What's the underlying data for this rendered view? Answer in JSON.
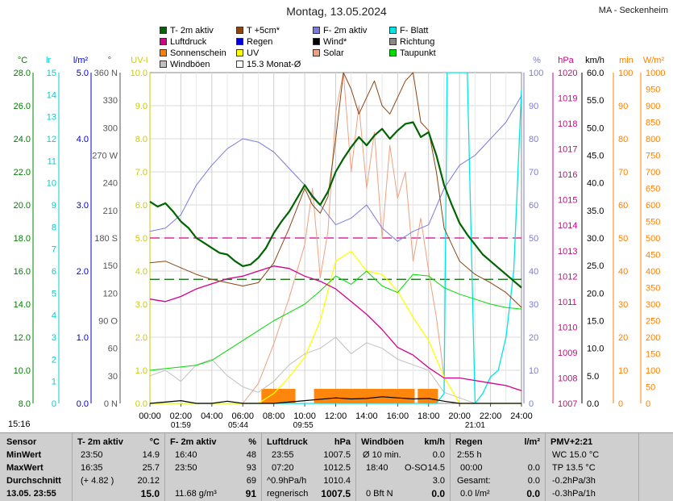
{
  "title": "Montag, 13.05.2024",
  "station": "MA - Seckenheim",
  "legend": [
    {
      "label": "T- 2m aktiv",
      "color": "#006400"
    },
    {
      "label": "T +5cm*",
      "color": "#8b4513"
    },
    {
      "label": "F- 2m aktiv",
      "color": "#7b7bdd"
    },
    {
      "label": "F- Blatt",
      "color": "#00e5e5"
    },
    {
      "label": "Luftdruck",
      "color": "#d4008a"
    },
    {
      "label": "Regen",
      "color": "#0000dd"
    },
    {
      "label": "Wind*",
      "color": "#000000"
    },
    {
      "label": "Richtung",
      "color": "#888888"
    },
    {
      "label": "Sonnenschein",
      "color": "#ff8000"
    },
    {
      "label": "UV",
      "color": "#ffff00"
    },
    {
      "label": "Solar",
      "color": "#f0a080"
    },
    {
      "label": "Taupunkt",
      "color": "#00dd00"
    },
    {
      "label": "Windböen",
      "color": "#c0c0c0"
    },
    {
      "label": "15.3 Monat-Ø",
      "color": "#ffffff"
    }
  ],
  "chart_data": {
    "type": "line",
    "x_unit": "h",
    "x_ticks": [
      "00:00",
      "02:00",
      "04:00",
      "06:00",
      "08:00",
      "10:00",
      "12:00",
      "14:00",
      "16:00",
      "18:00",
      "20:00",
      "22:00",
      "24:00"
    ],
    "xlim": [
      0,
      24
    ],
    "axes": [
      {
        "unit": "°C",
        "color": "#008000",
        "range": [
          8,
          28
        ],
        "ticks": [
          "8.0",
          "10.0",
          "12.0",
          "14.0",
          "16.0",
          "18.0",
          "20.0",
          "22.0",
          "24.0",
          "26.0",
          "28.0"
        ]
      },
      {
        "unit": "lr",
        "color": "#00cccc",
        "range": [
          0,
          15
        ],
        "ticks": [
          "0",
          "1",
          "2",
          "3",
          "4",
          "5",
          "6",
          "7",
          "8",
          "9",
          "10",
          "11",
          "12",
          "13",
          "14",
          "15"
        ]
      },
      {
        "unit": "l/m²",
        "color": "#0000cc",
        "range": [
          0,
          5
        ],
        "ticks": [
          "0.0",
          "1.0",
          "2.0",
          "3.0",
          "4.0",
          "5.0"
        ]
      },
      {
        "unit": "°",
        "color": "#555555",
        "range": [
          0,
          360
        ],
        "ticks": [
          "0 N",
          "30",
          "60",
          "90 O",
          "120",
          "150",
          "180 S",
          "210",
          "240",
          "270 W",
          "300",
          "330",
          "360 N"
        ]
      },
      {
        "unit": "UV-I",
        "color": "#cccc00",
        "range": [
          0,
          10
        ],
        "ticks": [
          "0.0",
          "1.0",
          "2.0",
          "3.0",
          "4.0",
          "5.0",
          "6.0",
          "7.0",
          "8.0",
          "9.0",
          "10.0"
        ]
      },
      {
        "unit": "%",
        "color": "#7b7bdd",
        "range": [
          0,
          100
        ],
        "ticks": [
          "0",
          "10",
          "20",
          "30",
          "40",
          "50",
          "60",
          "70",
          "80",
          "90",
          "100"
        ]
      },
      {
        "unit": "hPa",
        "color": "#d4008a",
        "range": [
          1007,
          1020
        ],
        "ticks": [
          "1007",
          "1008",
          "1009",
          "1010",
          "1011",
          "1012",
          "1013",
          "1014",
          "1015",
          "1016",
          "1017",
          "1018",
          "1019",
          "1020"
        ]
      },
      {
        "unit": "km/h",
        "color": "#000000",
        "range": [
          0,
          60
        ],
        "ticks": [
          "0.0",
          "5.0",
          "10.0",
          "15.0",
          "20.0",
          "25.0",
          "30.0",
          "35.0",
          "40.0",
          "45.0",
          "50.0",
          "55.0",
          "60.0"
        ]
      },
      {
        "unit": "min",
        "color": "#ff8000",
        "range": [
          0,
          100
        ],
        "ticks": [
          "0",
          "10",
          "20",
          "30",
          "40",
          "50",
          "60",
          "70",
          "80",
          "90",
          "100"
        ]
      },
      {
        "unit": "W/m²",
        "color": "#ff8000",
        "range": [
          0,
          1000
        ],
        "ticks": [
          "0",
          "50",
          "100",
          "150",
          "200",
          "250",
          "300",
          "350",
          "400",
          "450",
          "500",
          "550",
          "600",
          "650",
          "700",
          "750",
          "800",
          "850",
          "900",
          "950",
          "1000"
        ]
      }
    ],
    "series": [
      {
        "name": "T- 2m aktiv",
        "axis": "°C",
        "color": "#006400",
        "x": [
          0,
          0.5,
          1,
          1.5,
          2,
          2.5,
          3,
          3.5,
          4,
          4.5,
          5,
          5.5,
          6,
          6.5,
          7,
          7.5,
          8,
          8.5,
          9,
          9.5,
          10,
          10.5,
          11,
          11.5,
          12,
          12.5,
          13,
          13.5,
          14,
          14.5,
          15,
          15.5,
          16,
          16.5,
          17,
          17.5,
          18,
          18.5,
          19,
          19.5,
          20,
          20.5,
          21,
          21.5,
          22,
          22.5,
          23,
          23.5,
          24
        ],
        "values": [
          20.2,
          19.9,
          20.1,
          19.6,
          19.0,
          18.6,
          18.0,
          17.7,
          17.4,
          17.1,
          17.0,
          16.6,
          16.3,
          16.4,
          16.8,
          17.4,
          18.3,
          19.0,
          19.6,
          20.4,
          21.2,
          20.5,
          20.0,
          20.8,
          22.0,
          22.8,
          23.5,
          24.1,
          23.6,
          24.2,
          24.6,
          24.0,
          24.5,
          24.9,
          25.0,
          24.1,
          24.4,
          23.0,
          21.2,
          20.0,
          18.9,
          18.2,
          17.6,
          17.0,
          16.6,
          16.2,
          15.8,
          15.4,
          15.0
        ]
      },
      {
        "name": "T +5cm*",
        "axis": "°C",
        "color": "#8b4513",
        "x": [
          0,
          1,
          2,
          3,
          4,
          5,
          6,
          7,
          8,
          9,
          9.5,
          10,
          10.5,
          11,
          11.5,
          12,
          12.5,
          13,
          13.5,
          14,
          14.5,
          15,
          15.5,
          16,
          16.5,
          17,
          17.5,
          18,
          18.5,
          19,
          20,
          21,
          22,
          23,
          24
        ],
        "values": [
          16.5,
          16.6,
          16.2,
          15.8,
          15.5,
          15.3,
          15.1,
          15.3,
          16.5,
          18.6,
          19.8,
          21.0,
          20.0,
          19.5,
          20.5,
          24.0,
          28.0,
          27.0,
          25.5,
          26.5,
          27.5,
          26.0,
          25.5,
          26.5,
          27.5,
          28.0,
          25.0,
          24.5,
          22.0,
          18.6,
          16.6,
          15.8,
          15.3,
          14.7,
          13.8
        ]
      },
      {
        "name": "F- 2m aktiv",
        "axis": "%",
        "color": "#7b7bdd",
        "x": [
          0,
          1,
          2,
          3,
          4,
          5,
          6,
          7,
          8,
          9,
          10,
          11,
          12,
          13,
          14,
          15,
          16,
          17,
          18,
          19,
          20,
          21,
          22,
          23,
          24
        ],
        "values": [
          52,
          53,
          57,
          66,
          72,
          77,
          80,
          79,
          76,
          71,
          66,
          60,
          54,
          56,
          60,
          53,
          49,
          52,
          54,
          65,
          72,
          75,
          80,
          85,
          93
        ]
      },
      {
        "name": "F- Blatt",
        "axis": "%",
        "color": "#00e5e5",
        "x": [
          0,
          18.5,
          19,
          19.2,
          19.5,
          20.0,
          20.5,
          21,
          21.5,
          22,
          22.5,
          23,
          23.5,
          24
        ],
        "values": [
          0,
          0,
          3,
          100,
          100,
          100,
          100,
          0,
          3,
          8,
          10,
          20,
          40,
          95
        ]
      },
      {
        "name": "Luftdruck",
        "axis": "hPa",
        "color": "#d4008a",
        "x": [
          0,
          1,
          2,
          3,
          4,
          5,
          6,
          7,
          8,
          9,
          10,
          11,
          12,
          13,
          14,
          15,
          16,
          17,
          18,
          19,
          20,
          21,
          22,
          23,
          24
        ],
        "values": [
          1011.1,
          1011.0,
          1011.2,
          1011.5,
          1011.7,
          1011.9,
          1012.0,
          1012.2,
          1012.4,
          1012.3,
          1012.0,
          1011.8,
          1011.5,
          1011.0,
          1010.5,
          1009.9,
          1009.2,
          1008.9,
          1008.4,
          1008.0,
          1008.0,
          1007.9,
          1007.8,
          1007.7,
          1007.5
        ]
      },
      {
        "name": "Taupunkt",
        "axis": "°C",
        "color": "#00dd00",
        "x": [
          0,
          1,
          2,
          3,
          4,
          5,
          6,
          7,
          8,
          9,
          10,
          11,
          12,
          13,
          14,
          15,
          16,
          17,
          18,
          19,
          20,
          21,
          22,
          23,
          24
        ],
        "values": [
          10.0,
          10.1,
          10.2,
          10.3,
          10.6,
          11.2,
          11.8,
          12.4,
          13.0,
          13.5,
          14.0,
          14.8,
          15.7,
          15.2,
          16.0,
          15.1,
          14.7,
          15.8,
          15.7,
          15.0,
          14.6,
          14.3,
          14.0,
          13.8,
          13.7
        ]
      },
      {
        "name": "Windböen",
        "axis": "km/h",
        "color": "#c0c0c0",
        "x": [
          0,
          1,
          2,
          3,
          4,
          5,
          6,
          7,
          8,
          9,
          10,
          11,
          12,
          13,
          14,
          15,
          16,
          17,
          18,
          19,
          20,
          21,
          22,
          23,
          24
        ],
        "values": [
          5,
          6,
          4,
          7,
          8,
          5,
          3,
          2,
          4,
          7,
          9,
          10,
          12,
          9,
          11,
          10,
          8,
          7,
          6,
          2,
          1,
          0,
          0,
          0,
          0
        ]
      },
      {
        "name": "Solar",
        "axis": "W/m²",
        "color": "#f0a080",
        "x": [
          0,
          6,
          7,
          8,
          9,
          10,
          10.5,
          11,
          11.5,
          12,
          12.5,
          13,
          13.5,
          14,
          14.5,
          15,
          15.5,
          16,
          16.5,
          17,
          17.5,
          18,
          18.5,
          19,
          20,
          24
        ],
        "values": [
          0,
          0,
          60,
          180,
          320,
          480,
          650,
          380,
          520,
          880,
          1000,
          700,
          900,
          650,
          820,
          500,
          780,
          620,
          700,
          430,
          560,
          400,
          260,
          80,
          0,
          0
        ]
      },
      {
        "name": "UV",
        "axis": "UV-I",
        "color": "#ffff00",
        "x": [
          0,
          7,
          8,
          9,
          10,
          11,
          12,
          13,
          14,
          15,
          16,
          17,
          18,
          19,
          20,
          24
        ],
        "values": [
          0,
          0,
          0.3,
          0.8,
          1.4,
          2.5,
          4.3,
          4.6,
          4.0,
          3.9,
          3.4,
          2.6,
          1.9,
          0.8,
          0,
          0
        ]
      },
      {
        "name": "Wind*",
        "axis": "km/h",
        "color": "#000000",
        "x": [
          0,
          2,
          3,
          4,
          5,
          6,
          8,
          10,
          12,
          13,
          14,
          15,
          16,
          17,
          18,
          19,
          20,
          24
        ],
        "values": [
          0,
          0.5,
          0,
          0,
          0.4,
          0,
          0,
          0.5,
          1.0,
          0.8,
          0.9,
          1.2,
          1.0,
          0.8,
          0.9,
          0.4,
          0,
          0
        ]
      },
      {
        "name": "Sonnenschein",
        "axis": "min",
        "color": "#ff8000",
        "x": [
          7.2,
          9.4,
          10.4,
          10.6,
          11.8,
          17.1,
          17.3,
          18.3,
          18.6
        ],
        "values": [
          5,
          5,
          0,
          0,
          5,
          5,
          0,
          5,
          5
        ]
      }
    ],
    "reference_lines": [
      {
        "axis": "°C",
        "value": 18.0,
        "color": "#d4008a",
        "style": "dashed"
      },
      {
        "axis": "°C",
        "value": 15.5,
        "color": "#006400",
        "style": "dashed"
      }
    ],
    "time_markers": [
      "01:59",
      "05:44",
      "09:55",
      "21:01"
    ],
    "grid": true
  },
  "footer": {
    "time_label": "15:16",
    "sensor": {
      "header": "Sensor",
      "min": "MinWert",
      "max": "MaxWert",
      "avg": "Durchschnitt",
      "date": "13.05. 23:55"
    },
    "temp": {
      "header": "T- 2m aktiv",
      "unit": "°C",
      "min_time": "23:50",
      "min_val": "14.9",
      "max_time": "16:35",
      "max_val": "25.7",
      "avg_note": "(+ 4.82 )",
      "avg_val": "20.12",
      "current": "15.0"
    },
    "hum": {
      "header": "F- 2m aktiv",
      "unit": "%",
      "min_time": "16:40",
      "min_val": "48",
      "max_time": "23:50",
      "max_val": "93",
      "avg_val": "69",
      "abs": "11.68 g/m³",
      "current": "91"
    },
    "press": {
      "header": "Luftdruck",
      "unit": "hPa",
      "min_time": "23:55",
      "min_val": "1007.5",
      "max_time": "07:20",
      "max_val": "1012.5",
      "trend": "^0.9hPa/h",
      "trend_val": "1010.4",
      "status": "regnerisch",
      "current": "1007.5"
    },
    "gust": {
      "header": "Windböen",
      "unit": "km/h",
      "l1": "Ø 10 min.",
      "l1v": "0.0",
      "l2t": "18:40",
      "l2d": "O-SO",
      "l2v": "14.5",
      "l3v": "3.0",
      "l4": "0 Bft N",
      "current": "0.0"
    },
    "rain": {
      "header": "Regen",
      "unit": "l/m²",
      "l1": "2:55 h",
      "l2t": "00:00",
      "l2v": "0.0",
      "l3": "Gesamt:",
      "l3v": "0.0",
      "l4": "0.0 l/m²",
      "current": "0.0"
    },
    "pmv": {
      "header": "PMV+2:21",
      "l1": "WC 15.0 °C",
      "l2": "TP 13.5 °C",
      "l3": "-0.2hPa/3h",
      "l4": "-0.3hPa/1h"
    }
  }
}
